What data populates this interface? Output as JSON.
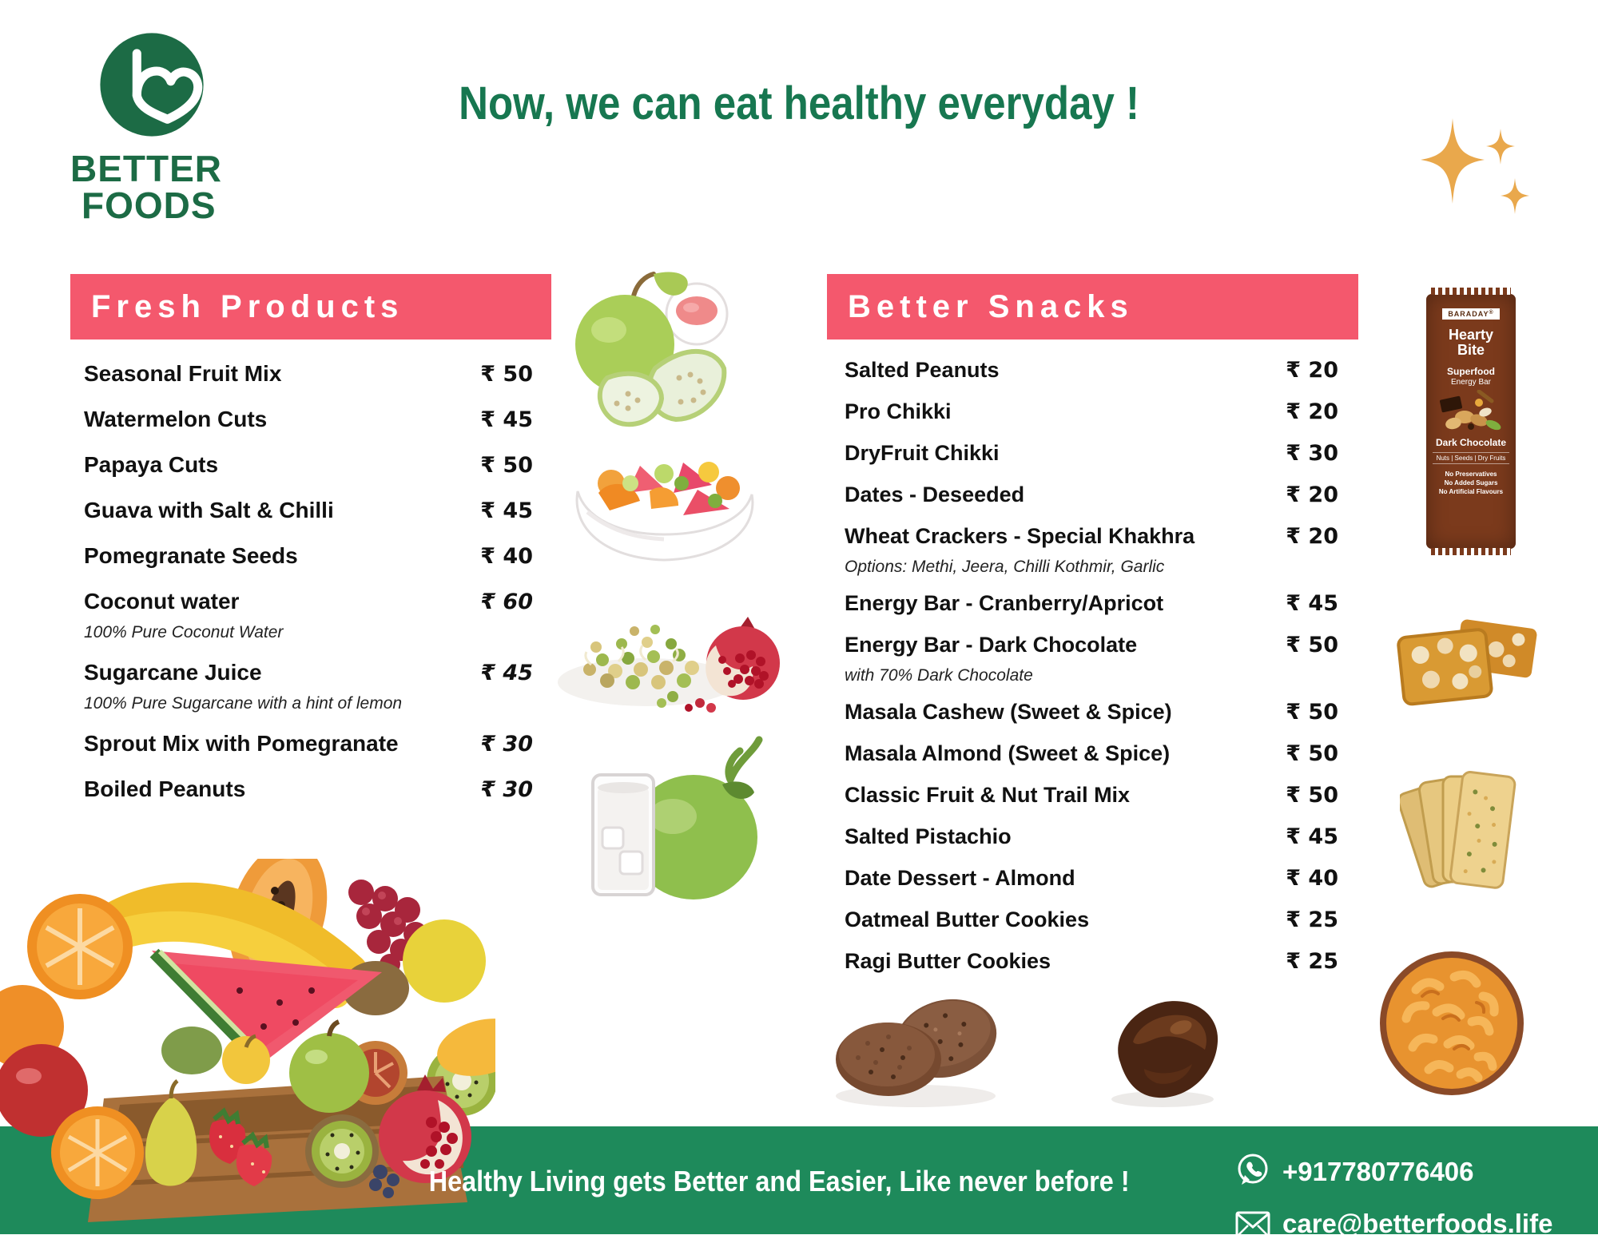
{
  "brand": {
    "name_line1": "BETTER",
    "name_line2": "FOODS"
  },
  "headline": "Now, we can eat healthy everyday !",
  "currency": "₹",
  "sections": [
    {
      "title": "Fresh Products",
      "items": [
        {
          "name": "Seasonal Fruit Mix",
          "price": "₹ 50"
        },
        {
          "name": "Watermelon Cuts",
          "price": "₹ 45"
        },
        {
          "name": "Papaya Cuts",
          "price": "₹ 50"
        },
        {
          "name": "Guava with Salt & Chilli",
          "price": "₹ 45"
        },
        {
          "name": "Pomegranate Seeds",
          "price": "₹ 40"
        },
        {
          "name": "Coconut water",
          "price": "₹ 60",
          "price_italic": true,
          "note": "100% Pure Coconut Water"
        },
        {
          "name": "Sugarcane Juice",
          "price": "₹ 45",
          "price_italic": true,
          "note": "100% Pure Sugarcane with a hint of lemon"
        },
        {
          "name": "Sprout Mix with Pomegranate",
          "price": "₹ 30",
          "price_italic": true
        },
        {
          "name": "Boiled Peanuts",
          "price": "₹ 30",
          "price_italic": true
        }
      ]
    },
    {
      "title": "Better Snacks",
      "items": [
        {
          "name": "Salted Peanuts",
          "price": "₹ 20"
        },
        {
          "name": "Pro Chikki",
          "price": "₹ 20"
        },
        {
          "name": "DryFruit Chikki",
          "price": "₹ 30"
        },
        {
          "name": "Dates - Deseeded",
          "price": "₹ 20"
        },
        {
          "name": "Wheat Crackers - Special Khakhra",
          "price": "₹ 20",
          "note": "Options: Methi, Jeera, Chilli Kothmir, Garlic"
        },
        {
          "name": "Energy Bar - Cranberry/Apricot",
          "price": "₹ 45"
        },
        {
          "name": "Energy Bar - Dark Chocolate",
          "price": "₹ 50",
          "note": "with 70% Dark Chocolate"
        },
        {
          "name": "Masala Cashew (Sweet & Spice)",
          "price": "₹ 50"
        },
        {
          "name": "Masala Almond (Sweet & Spice)",
          "price": "₹ 50"
        },
        {
          "name": "Classic Fruit & Nut Trail Mix",
          "price": "₹ 50"
        },
        {
          "name": "Salted Pistachio",
          "price": "₹ 45"
        },
        {
          "name": "Date Dessert - Almond",
          "price": "₹ 40"
        },
        {
          "name": "Oatmeal Butter Cookies",
          "price": "₹ 25"
        },
        {
          "name": "Ragi Butter Cookies",
          "price": "₹ 25"
        }
      ]
    }
  ],
  "product_bar": {
    "brand": "BARADAY",
    "title_line1": "Hearty",
    "title_line2": "Bite",
    "superfood": "Superfood",
    "energy_bar": "Energy Bar",
    "flavor": "Dark Chocolate",
    "contents": "Nuts | Seeds | Dry Fruits",
    "claims": [
      "No Preservatives",
      "No Added Sugars",
      "No Artificial Flavours"
    ]
  },
  "footer": {
    "tagline": "Healthy Living gets Better and Easier, Like never before !",
    "phone": "+917780776406",
    "email": "care@betterfoods.life"
  },
  "illustrations": [
    "better-foods-logo",
    "gold-sparkles",
    "guava-with-salt-bowl",
    "fruit-salad-bowl",
    "sprout-mix-with-pomegranate",
    "coconut-water-glass",
    "hearty-bite-energy-bar",
    "peanut-chikki",
    "khakhra-crackers",
    "masala-cashew-bowl",
    "ragi-cookies",
    "chocolate-date",
    "fruit-crate"
  ],
  "colors": {
    "accent_pink": "#F4586D",
    "footer_green": "#1E8A5B",
    "brand_green": "#1C6B45",
    "headline_green": "#177750",
    "sparkle_gold": "#E9A84C"
  }
}
